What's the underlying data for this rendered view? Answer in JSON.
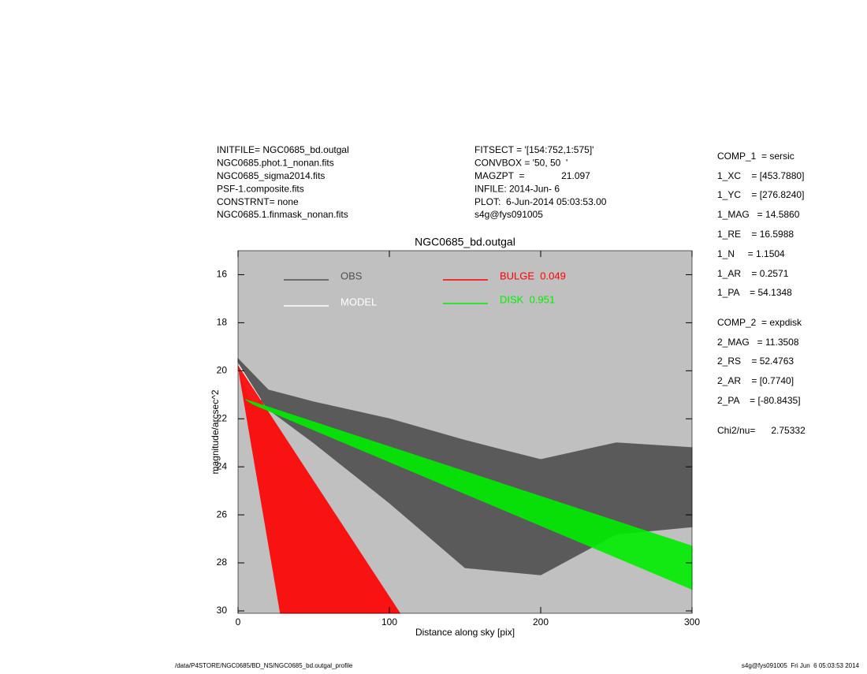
{
  "chart_data": {
    "type": "polygon",
    "title": "NGC0685_bd.outgal",
    "x_label": "Distance along sky [pix]",
    "y_label": "magnitude/arcsec^2",
    "header_left": [
      "INITFILE= NGC0685_bd.outgal",
      "NGC0685.phot.1_nonan.fits",
      "NGC0685_sigma2014.fits",
      "PSF-1.composite.fits",
      "CONSTRNT= none",
      "NGC0685.1.finmask_nonan.fits"
    ],
    "header_middle": [
      "FITSECT = '[154:752,1:575]'",
      "CONVBOX = '50, 50  '",
      "MAGZPT  =              21.097",
      "INFILE: 2014-Jun- 6",
      "PLOT:  6-Jun-2014 05:03:53.00",
      "s4g@fys091005"
    ],
    "parameters": [
      "COMP_1  = sersic",
      "1_XC    = [453.7880]",
      "1_YC    = [276.8240]",
      "1_MAG   = 14.5860",
      "1_RE    = 16.5988",
      "1_N     = 1.1504",
      "1_AR    = 0.2571",
      "1_PA    = 54.1348",
      "COMP_2  = expdisk",
      "2_MAG   = 11.3508",
      "2_RS    = 52.4763",
      "2_AR    = [0.7740]",
      "2_PA    = [-80.8435]",
      "Chi2/nu=      2.75332"
    ],
    "footer_left": "/data/P4STORE/NGC0685/BD_NS/NGC0685_bd.outgal_profile",
    "footer_right": "s4g@fys091005  Fri Jun  6 05:03:53 2014",
    "xlim": [
      0,
      300
    ],
    "xticks": [
      0,
      100,
      200,
      300
    ],
    "ylim": [
      15,
      30.1
    ],
    "yticks": [
      16,
      18,
      20,
      22,
      24,
      26,
      28,
      30
    ],
    "y_inverted": true,
    "series": [
      {
        "name": "OBS",
        "color": "#505050",
        "x": [
          0,
          20,
          50,
          100,
          150,
          200,
          250,
          300,
          300,
          250,
          200,
          150,
          100,
          50,
          20,
          0
        ],
        "values": [
          19.5,
          20.8,
          21.3,
          22.0,
          22.9,
          23.7,
          23.0,
          23.2,
          26.5,
          26.8,
          28.5,
          28.2,
          25.5,
          23.0,
          21.6,
          20.0
        ]
      },
      {
        "name": "MODEL",
        "color": "#ffffff",
        "x": [
          0,
          15,
          10,
          0
        ],
        "values": [
          19.7,
          21.2,
          21.4,
          20.0
        ]
      },
      {
        "name": "BULGE  0.049",
        "color": "#ff0000",
        "x": [
          0,
          107,
          28
        ],
        "values": [
          19.8,
          30.1,
          30.1
        ]
      },
      {
        "name": "DISK  0.951",
        "color": "#00ee00",
        "x": [
          5,
          300,
          300,
          10
        ],
        "values": [
          21.2,
          27.3,
          29.1,
          21.4
        ]
      }
    ]
  }
}
